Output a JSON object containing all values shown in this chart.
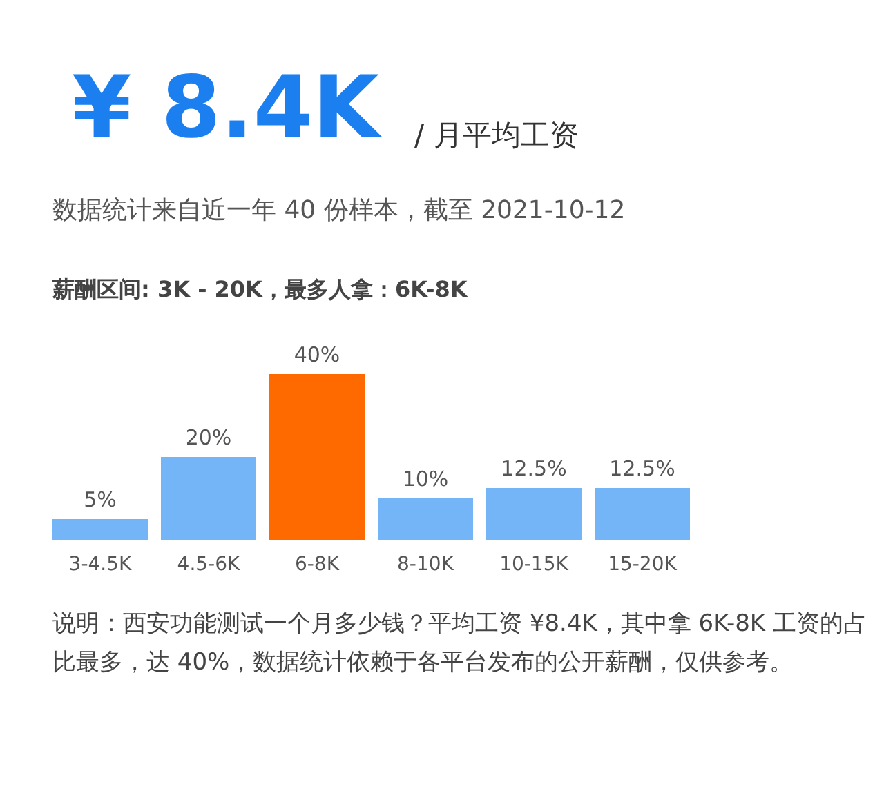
{
  "chart_data": {
    "type": "bar",
    "title": "¥ 8.4K",
    "subtitle": "/ 月平均工资",
    "categories": [
      "3-4.5K",
      "4.5-6K",
      "6-8K",
      "8-10K",
      "10-15K",
      "15-20K"
    ],
    "values": [
      5,
      20,
      40,
      10,
      12.5,
      12.5
    ],
    "value_labels": [
      "5%",
      "20%",
      "40%",
      "10%",
      "12.5%",
      "12.5%"
    ],
    "colors": [
      "#74b5f8",
      "#74b5f8",
      "#ff6a00",
      "#74b5f8",
      "#74b5f8",
      "#74b5f8"
    ],
    "annotations": [
      "数据统计来自近一年 40 份样本，截至 2021-10-12",
      "薪酬区间: 3K - 20K，最多人拿：6K-8K",
      "说明：西安功能测试一个月多少钱？平均工资 ¥8.4K，其中拿 6K-8K 工资的占比最多，达 40%，数据统计依赖于各平台发布的公开薪酬，仅供参考。"
    ]
  }
}
